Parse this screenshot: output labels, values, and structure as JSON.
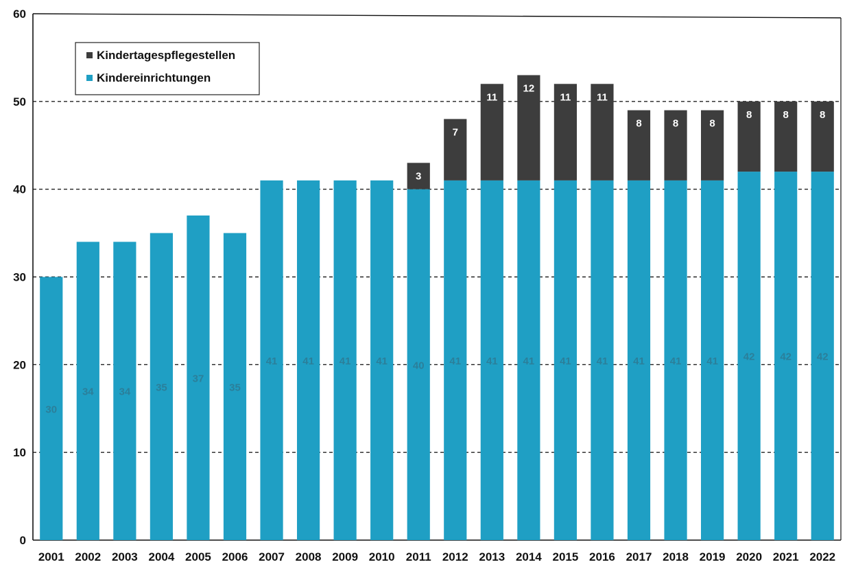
{
  "chart_data": {
    "type": "bar",
    "stacked": true,
    "categories": [
      "2001",
      "2002",
      "2003",
      "2004",
      "2005",
      "2006",
      "2007",
      "2008",
      "2009",
      "2010",
      "2011",
      "2012",
      "2013",
      "2014",
      "2015",
      "2016",
      "2017",
      "2018",
      "2019",
      "2020",
      "2021",
      "2022"
    ],
    "series": [
      {
        "name": "Kindereinrichtungen",
        "color": "#1f9fc4",
        "values": [
          30,
          34,
          34,
          35,
          37,
          35,
          41,
          41,
          41,
          41,
          40,
          41,
          41,
          41,
          41,
          41,
          41,
          41,
          41,
          42,
          42,
          42
        ],
        "label_color": "#2b7f9a"
      },
      {
        "name": "Kindertagespflegestellen",
        "color": "#3d3d3d",
        "values": [
          0,
          0,
          0,
          0,
          0,
          0,
          0,
          0,
          0,
          0,
          3,
          7,
          11,
          12,
          11,
          11,
          8,
          8,
          8,
          8,
          8,
          8
        ],
        "label_color": "#ffffff"
      }
    ],
    "ylim": [
      0,
      60
    ],
    "yticks": [
      0,
      10,
      20,
      30,
      40,
      50,
      60
    ],
    "grid": "dashed horizontal",
    "legend_position": "top-left",
    "legend_order": [
      "Kindertagespflegestellen",
      "Kindereinrichtungen"
    ],
    "title": "",
    "xlabel": "",
    "ylabel": ""
  }
}
